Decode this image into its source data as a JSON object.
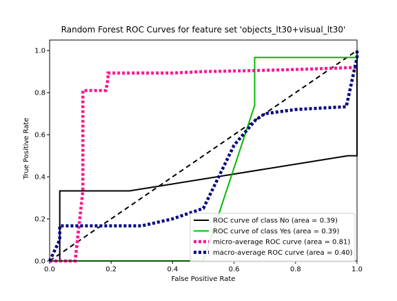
{
  "chart_data": {
    "type": "line",
    "title": "Random Forest ROC Curves for feature set 'objects_lt30+visual_lt30'",
    "xlabel": "False Positive Rate",
    "ylabel": "True Positive Rate",
    "xlim": [
      0.0,
      1.0
    ],
    "ylim": [
      0.0,
      1.05
    ],
    "xticks": [
      0.0,
      0.2,
      0.4,
      0.6,
      0.8,
      1.0
    ],
    "xtick_labels": [
      "0.0",
      "0.2",
      "0.4",
      "0.6",
      "0.8",
      "1.0"
    ],
    "yticks": [
      0.0,
      0.2,
      0.4,
      0.6,
      0.8,
      1.0
    ],
    "ytick_labels": [
      "0.0",
      "0.2",
      "0.4",
      "0.6",
      "0.8",
      "1.0"
    ],
    "grid": false,
    "legend_position": "bottom-right",
    "series": [
      {
        "name": "ROC curve of class No (area = 0.39)",
        "color": "#000000",
        "style": "solid",
        "x": [
          0.0,
          0.033,
          0.033,
          0.26,
          0.97,
          1.0,
          1.0
        ],
        "y": [
          0.0,
          0.0,
          0.333,
          0.333,
          0.5,
          0.5,
          1.0
        ]
      },
      {
        "name": "ROC curve of class Yes (area = 0.39)",
        "color": "#00bb00",
        "style": "solid",
        "x": [
          0.0,
          0.5,
          0.667,
          0.667,
          1.0,
          1.0
        ],
        "y": [
          0.0,
          0.0,
          0.74,
          0.967,
          0.967,
          1.0
        ]
      },
      {
        "name": "micro-average ROC curve (area = 0.81)",
        "color": "#ff1493",
        "style": "dotted",
        "x": [
          0.0,
          0.083,
          0.108,
          0.108,
          0.183,
          0.19,
          0.19,
          0.4,
          0.5,
          0.67,
          0.8,
          1.0
        ],
        "y": [
          0.0,
          0.0,
          0.333,
          0.81,
          0.81,
          0.867,
          0.893,
          0.893,
          0.9,
          0.905,
          0.91,
          0.92
        ]
      },
      {
        "name": "macro-average ROC curve (area = 0.40)",
        "color": "#000080",
        "style": "dotted",
        "x": [
          0.0,
          0.033,
          0.033,
          0.1,
          0.3,
          0.4,
          0.5,
          0.55,
          0.6,
          0.67,
          0.7,
          0.8,
          0.965,
          1.0,
          1.0
        ],
        "y": [
          0.0,
          0.1,
          0.167,
          0.167,
          0.167,
          0.2,
          0.25,
          0.4,
          0.55,
          0.67,
          0.7,
          0.72,
          0.733,
          0.967,
          1.0
        ]
      },
      {
        "name": "",
        "color": "#000000",
        "style": "dashed",
        "x": [
          0.0,
          1.0
        ],
        "y": [
          0.0,
          1.0
        ]
      }
    ]
  }
}
